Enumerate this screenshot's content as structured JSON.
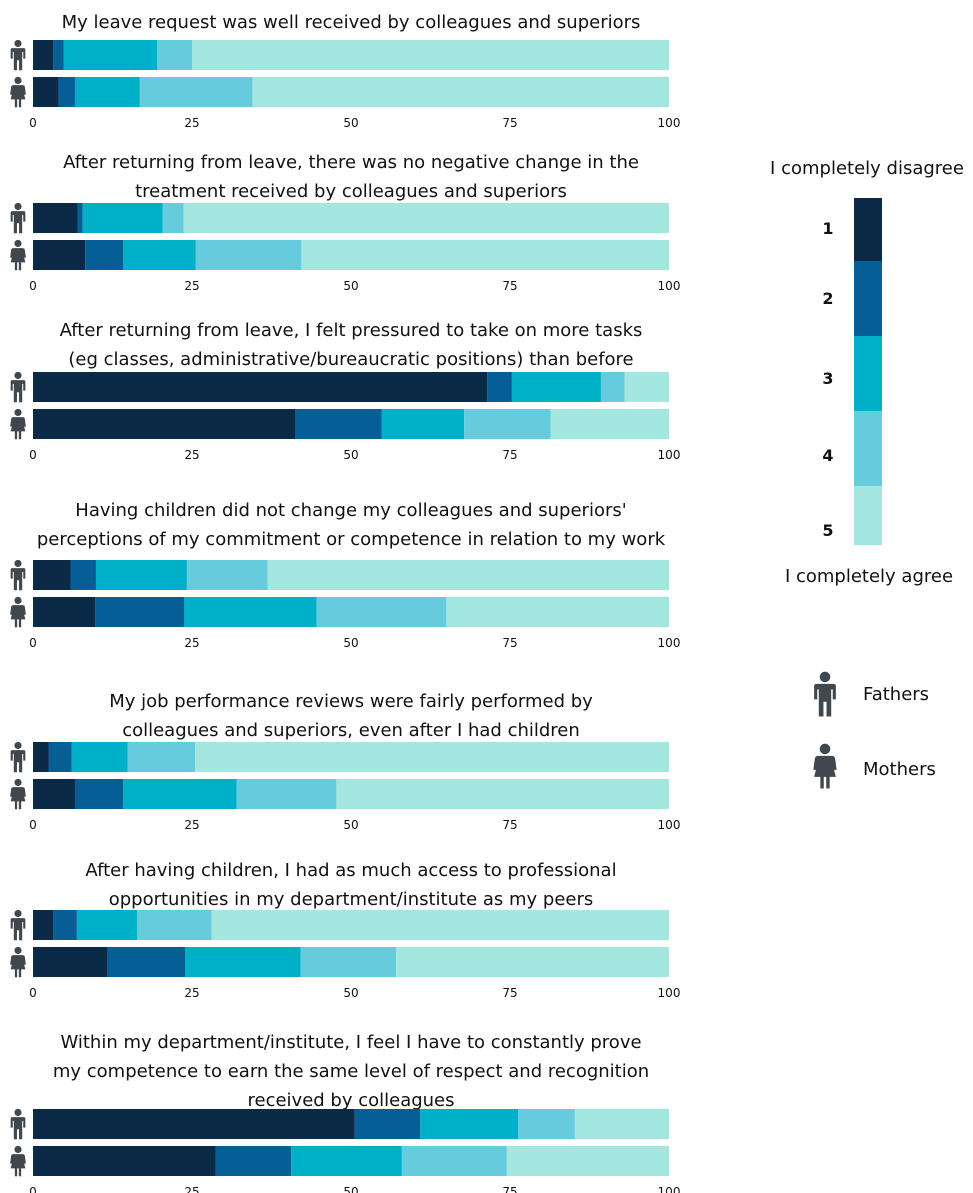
{
  "chart_data": {
    "type": "bar",
    "orientation": "horizontal",
    "stacked": true,
    "xlim": [
      0,
      100
    ],
    "x_ticks": [
      "0",
      "25",
      "50",
      "75",
      "100"
    ],
    "rating_levels": [
      "1",
      "2",
      "3",
      "4",
      "5"
    ],
    "colors": [
      "#0b2a47",
      "#045f96",
      "#00b0c8",
      "#66cbdc",
      "#a4e6e0"
    ],
    "scale_labels": {
      "low": "I completely disagree",
      "high": "I completely agree"
    },
    "groups": [
      "Fathers",
      "Mothers"
    ],
    "grid": false,
    "legend_placement": "right",
    "questions": [
      {
        "title_lines": [
          "My leave request was well received by colleagues and superiors"
        ],
        "fathers": [
          3.2,
          1.6,
          14.7,
          5.5,
          75.0
        ],
        "mothers": [
          4.0,
          2.6,
          10.2,
          17.7,
          65.5
        ]
      },
      {
        "title_lines": [
          "After returning from leave, there was no negative change in the",
          "treatment received by colleagues and superiors"
        ],
        "fathers": [
          7.0,
          0.8,
          12.6,
          3.3,
          76.3
        ],
        "mothers": [
          8.2,
          6.0,
          11.4,
          16.6,
          57.8
        ]
      },
      {
        "title_lines": [
          "After returning from leave, I felt pressured to take on more tasks",
          "(eg classes, administrative/bureaucratic positions) than before"
        ],
        "fathers": [
          71.4,
          3.9,
          14.0,
          3.7,
          7.0
        ],
        "mothers": [
          41.3,
          13.5,
          13.0,
          13.6,
          18.6
        ]
      },
      {
        "title_lines": [
          "Having children did not change my colleagues and superiors'",
          "perceptions of my commitment or competence in relation to my work"
        ],
        "fathers": [
          5.9,
          4.0,
          14.3,
          12.7,
          63.1
        ],
        "mothers": [
          9.8,
          14.0,
          20.8,
          20.4,
          35.0
        ]
      },
      {
        "title_lines": [
          "My job performance reviews were fairly performed by",
          "colleagues and superiors, even after I had children"
        ],
        "fathers": [
          2.5,
          3.6,
          8.8,
          10.6,
          74.5
        ],
        "mothers": [
          6.6,
          7.6,
          17.8,
          15.7,
          52.3
        ]
      },
      {
        "title_lines": [
          "After having children, I had as much access to professional",
          "opportunities in my department/institute as my peers"
        ],
        "fathers": [
          3.2,
          3.7,
          9.5,
          11.7,
          71.9
        ],
        "mothers": [
          11.7,
          12.2,
          18.2,
          15.0,
          42.9
        ]
      },
      {
        "title_lines": [
          "Within my department/institute, I feel I have to constantly prove",
          "my competence to earn the same level of respect and recognition",
          "received by colleagues"
        ],
        "fathers": [
          50.6,
          10.3,
          15.4,
          8.9,
          14.8
        ],
        "mothers": [
          28.7,
          11.9,
          17.4,
          16.5,
          25.5
        ]
      }
    ]
  },
  "icons": {
    "fathers": "man-icon",
    "mothers": "woman-icon"
  },
  "icon_color": "#3f474f"
}
